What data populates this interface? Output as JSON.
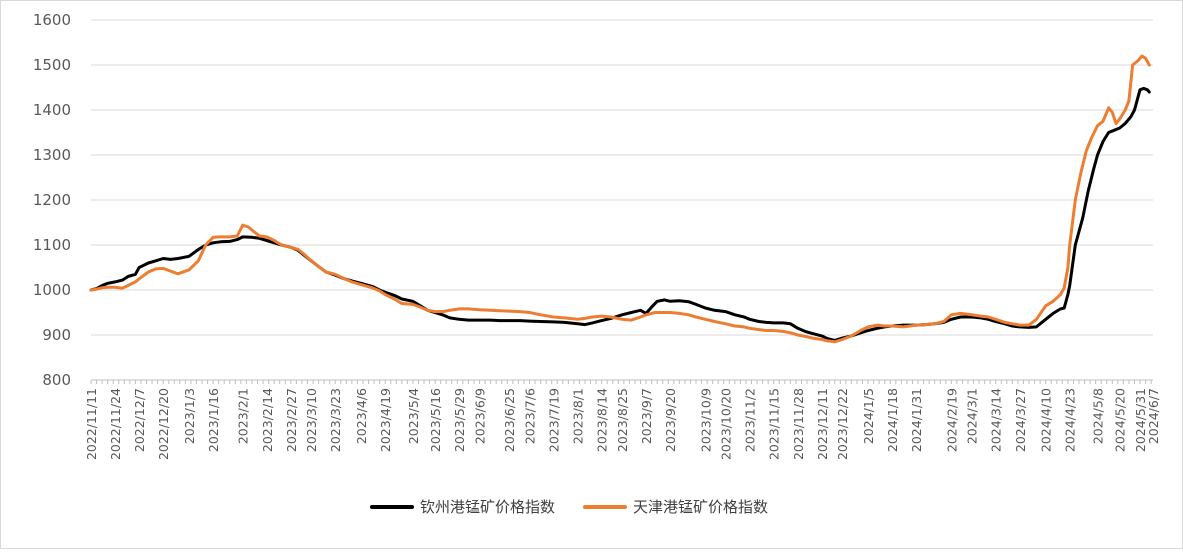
{
  "chart_data": {
    "type": "line",
    "title": "",
    "xlabel": "",
    "ylabel": "",
    "ylim": [
      800,
      1600
    ],
    "yticks": [
      800,
      900,
      1000,
      1100,
      1200,
      1300,
      1400,
      1500,
      1600
    ],
    "grid": "horizontal",
    "legend_position": "bottom",
    "x_start": "2022/11/11",
    "x_end": "2024/6/7",
    "xtick_labels": [
      "2022/11/11",
      "2022/11/24",
      "2022/12/7",
      "2022/12/20",
      "2023/1/3",
      "2023/1/16",
      "2023/2/1",
      "2023/2/14",
      "2023/2/27",
      "2023/3/10",
      "2023/3/23",
      "2023/4/6",
      "2023/4/19",
      "2023/5/4",
      "2023/5/16",
      "2023/5/29",
      "2023/6/9",
      "2023/6/25",
      "2023/7/6",
      "2023/7/19",
      "2023/8/1",
      "2023/8/14",
      "2023/8/25",
      "2023/9/7",
      "2023/9/20",
      "2023/10/9",
      "2023/10/20",
      "2023/11/2",
      "2023/11/15",
      "2023/11/28",
      "2023/12/11",
      "2023/12/22",
      "2024/1/5",
      "2024/1/18",
      "2024/1/31",
      "2024/2/19",
      "2024/3/1",
      "2024/3/14",
      "2024/3/27",
      "2024/4/10",
      "2024/4/23",
      "2024/5/8",
      "2024/5/20",
      "2024/5/31",
      "2024/6/7"
    ],
    "series": [
      {
        "name": "钦州港锰矿价格指数",
        "color": "#000000",
        "points": [
          [
            "2022/11/11",
            1000
          ],
          [
            "2022/11/14",
            1003
          ],
          [
            "2022/11/17",
            1010
          ],
          [
            "2022/11/20",
            1015
          ],
          [
            "2022/11/24",
            1018
          ],
          [
            "2022/11/28",
            1022
          ],
          [
            "2022/12/1",
            1030
          ],
          [
            "2022/12/5",
            1035
          ],
          [
            "2022/12/7",
            1050
          ],
          [
            "2022/12/12",
            1060
          ],
          [
            "2022/12/16",
            1065
          ],
          [
            "2022/12/20",
            1070
          ],
          [
            "2022/12/24",
            1068
          ],
          [
            "2022/12/28",
            1070
          ],
          [
            "2023/1/3",
            1075
          ],
          [
            "2023/1/8",
            1090
          ],
          [
            "2023/1/12",
            1100
          ],
          [
            "2023/1/16",
            1105
          ],
          [
            "2023/1/20",
            1107
          ],
          [
            "2023/1/25",
            1108
          ],
          [
            "2023/1/29",
            1112
          ],
          [
            "2023/2/1",
            1118
          ],
          [
            "2023/2/6",
            1117
          ],
          [
            "2023/2/10",
            1115
          ],
          [
            "2023/2/14",
            1110
          ],
          [
            "2023/2/18",
            1105
          ],
          [
            "2023/2/22",
            1100
          ],
          [
            "2023/2/27",
            1095
          ],
          [
            "2023/3/3",
            1088
          ],
          [
            "2023/3/6",
            1078
          ],
          [
            "2023/3/10",
            1065
          ],
          [
            "2023/3/14",
            1052
          ],
          [
            "2023/3/18",
            1040
          ],
          [
            "2023/3/23",
            1033
          ],
          [
            "2023/3/28",
            1025
          ],
          [
            "2023/4/1",
            1020
          ],
          [
            "2023/4/6",
            1015
          ],
          [
            "2023/4/12",
            1008
          ],
          [
            "2023/4/16",
            1000
          ],
          [
            "2023/4/19",
            995
          ],
          [
            "2023/4/24",
            988
          ],
          [
            "2023/4/28",
            980
          ],
          [
            "2023/5/4",
            975
          ],
          [
            "2023/5/8",
            965
          ],
          [
            "2023/5/12",
            955
          ],
          [
            "2023/5/16",
            950
          ],
          [
            "2023/5/20",
            945
          ],
          [
            "2023/5/24",
            938
          ],
          [
            "2023/5/29",
            935
          ],
          [
            "2023/6/3",
            933
          ],
          [
            "2023/6/9",
            933
          ],
          [
            "2023/6/15",
            933
          ],
          [
            "2023/6/20",
            932
          ],
          [
            "2023/6/25",
            932
          ],
          [
            "2023/7/1",
            932
          ],
          [
            "2023/7/6",
            931
          ],
          [
            "2023/7/12",
            930
          ],
          [
            "2023/7/19",
            929
          ],
          [
            "2023/7/25",
            928
          ],
          [
            "2023/8/1",
            925
          ],
          [
            "2023/8/5",
            923
          ],
          [
            "2023/8/9",
            927
          ],
          [
            "2023/8/14",
            932
          ],
          [
            "2023/8/19",
            937
          ],
          [
            "2023/8/25",
            945
          ],
          [
            "2023/8/30",
            950
          ],
          [
            "2023/9/4",
            955
          ],
          [
            "2023/9/7",
            948
          ],
          [
            "2023/9/10",
            962
          ],
          [
            "2023/9/13",
            975
          ],
          [
            "2023/9/17",
            978
          ],
          [
            "2023/9/20",
            975
          ],
          [
            "2023/9/25",
            976
          ],
          [
            "2023/9/30",
            974
          ],
          [
            "2023/10/4",
            968
          ],
          [
            "2023/10/9",
            960
          ],
          [
            "2023/10/14",
            955
          ],
          [
            "2023/10/20",
            952
          ],
          [
            "2023/10/25",
            945
          ],
          [
            "2023/10/30",
            940
          ],
          [
            "2023/11/2",
            935
          ],
          [
            "2023/11/7",
            930
          ],
          [
            "2023/11/11",
            928
          ],
          [
            "2023/11/15",
            927
          ],
          [
            "2023/11/20",
            927
          ],
          [
            "2023/11/24",
            925
          ],
          [
            "2023/11/28",
            915
          ],
          [
            "2023/12/2",
            908
          ],
          [
            "2023/12/6",
            903
          ],
          [
            "2023/12/11",
            898
          ],
          [
            "2023/12/14",
            892
          ],
          [
            "2023/12/18",
            888
          ],
          [
            "2023/12/22",
            893
          ],
          [
            "2023/12/27",
            898
          ],
          [
            "2024/1/1",
            905
          ],
          [
            "2024/1/5",
            910
          ],
          [
            "2024/1/10",
            915
          ],
          [
            "2024/1/14",
            918
          ],
          [
            "2024/1/18",
            920
          ],
          [
            "2024/1/24",
            922
          ],
          [
            "2024/1/31",
            922
          ],
          [
            "2024/2/5",
            923
          ],
          [
            "2024/2/10",
            925
          ],
          [
            "2024/2/15",
            928
          ],
          [
            "2024/2/19",
            935
          ],
          [
            "2024/2/24",
            940
          ],
          [
            "2024/3/1",
            940
          ],
          [
            "2024/3/6",
            938
          ],
          [
            "2024/3/10",
            935
          ],
          [
            "2024/3/14",
            930
          ],
          [
            "2024/3/19",
            925
          ],
          [
            "2024/3/23",
            920
          ],
          [
            "2024/3/27",
            918
          ],
          [
            "2024/4/1",
            917
          ],
          [
            "2024/4/5",
            918
          ],
          [
            "2024/4/10",
            935
          ],
          [
            "2024/4/14",
            948
          ],
          [
            "2024/4/18",
            958
          ],
          [
            "2024/4/20",
            960
          ],
          [
            "2024/4/22",
            990
          ],
          [
            "2024/4/23",
            1010
          ],
          [
            "2024/4/26",
            1100
          ],
          [
            "2024/4/30",
            1160
          ],
          [
            "2024/5/3",
            1220
          ],
          [
            "2024/5/6",
            1270
          ],
          [
            "2024/5/8",
            1300
          ],
          [
            "2024/5/11",
            1330
          ],
          [
            "2024/5/14",
            1350
          ],
          [
            "2024/5/17",
            1355
          ],
          [
            "2024/5/20",
            1360
          ],
          [
            "2024/5/23",
            1370
          ],
          [
            "2024/5/26",
            1385
          ],
          [
            "2024/5/28",
            1400
          ],
          [
            "2024/5/31",
            1445
          ],
          [
            "2024/6/2",
            1448
          ],
          [
            "2024/6/4",
            1445
          ],
          [
            "2024/6/5",
            1440
          ]
        ]
      },
      {
        "name": "天津港锰矿价格指数",
        "color": "#ED7D31",
        "points": [
          [
            "2022/11/11",
            1000
          ],
          [
            "2022/11/14",
            1002
          ],
          [
            "2022/11/17",
            1005
          ],
          [
            "2022/11/20",
            1006
          ],
          [
            "2022/11/24",
            1006
          ],
          [
            "2022/11/28",
            1004
          ],
          [
            "2022/12/1",
            1010
          ],
          [
            "2022/12/5",
            1018
          ],
          [
            "2022/12/7",
            1025
          ],
          [
            "2022/12/12",
            1040
          ],
          [
            "2022/12/16",
            1047
          ],
          [
            "2022/12/20",
            1048
          ],
          [
            "2022/12/24",
            1042
          ],
          [
            "2022/12/28",
            1036
          ],
          [
            "2023/1/3",
            1045
          ],
          [
            "2023/1/8",
            1065
          ],
          [
            "2023/1/12",
            1100
          ],
          [
            "2023/1/16",
            1117
          ],
          [
            "2023/1/20",
            1118
          ],
          [
            "2023/1/25",
            1118
          ],
          [
            "2023/1/29",
            1120
          ],
          [
            "2023/2/1",
            1144
          ],
          [
            "2023/2/4",
            1140
          ],
          [
            "2023/2/7",
            1130
          ],
          [
            "2023/2/10",
            1120
          ],
          [
            "2023/2/14",
            1118
          ],
          [
            "2023/2/18",
            1110
          ],
          [
            "2023/2/22",
            1100
          ],
          [
            "2023/2/27",
            1095
          ],
          [
            "2023/3/3",
            1090
          ],
          [
            "2023/3/6",
            1080
          ],
          [
            "2023/3/10",
            1065
          ],
          [
            "2023/3/14",
            1052
          ],
          [
            "2023/3/18",
            1040
          ],
          [
            "2023/3/23",
            1035
          ],
          [
            "2023/3/28",
            1025
          ],
          [
            "2023/4/1",
            1018
          ],
          [
            "2023/4/6",
            1012
          ],
          [
            "2023/4/12",
            1005
          ],
          [
            "2023/4/16",
            998
          ],
          [
            "2023/4/19",
            990
          ],
          [
            "2023/4/24",
            980
          ],
          [
            "2023/4/28",
            970
          ],
          [
            "2023/5/4",
            968
          ],
          [
            "2023/5/8",
            962
          ],
          [
            "2023/5/12",
            955
          ],
          [
            "2023/5/16",
            952
          ],
          [
            "2023/5/20",
            952
          ],
          [
            "2023/5/24",
            955
          ],
          [
            "2023/5/29",
            958
          ],
          [
            "2023/6/3",
            958
          ],
          [
            "2023/6/9",
            956
          ],
          [
            "2023/6/15",
            955
          ],
          [
            "2023/6/20",
            954
          ],
          [
            "2023/6/25",
            953
          ],
          [
            "2023/7/1",
            952
          ],
          [
            "2023/7/6",
            950
          ],
          [
            "2023/7/12",
            945
          ],
          [
            "2023/7/19",
            940
          ],
          [
            "2023/7/25",
            938
          ],
          [
            "2023/8/1",
            935
          ],
          [
            "2023/8/5",
            937
          ],
          [
            "2023/8/9",
            940
          ],
          [
            "2023/8/14",
            942
          ],
          [
            "2023/8/19",
            940
          ],
          [
            "2023/8/25",
            935
          ],
          [
            "2023/8/30",
            933
          ],
          [
            "2023/9/4",
            940
          ],
          [
            "2023/9/7",
            945
          ],
          [
            "2023/9/12",
            950
          ],
          [
            "2023/9/17",
            950
          ],
          [
            "2023/9/20",
            950
          ],
          [
            "2023/9/25",
            948
          ],
          [
            "2023/9/30",
            945
          ],
          [
            "2023/10/4",
            940
          ],
          [
            "2023/10/9",
            935
          ],
          [
            "2023/10/14",
            930
          ],
          [
            "2023/10/20",
            925
          ],
          [
            "2023/10/25",
            920
          ],
          [
            "2023/10/30",
            918
          ],
          [
            "2023/11/2",
            915
          ],
          [
            "2023/11/7",
            912
          ],
          [
            "2023/11/11",
            910
          ],
          [
            "2023/11/15",
            910
          ],
          [
            "2023/11/20",
            908
          ],
          [
            "2023/11/24",
            905
          ],
          [
            "2023/11/28",
            900
          ],
          [
            "2023/12/2",
            897
          ],
          [
            "2023/12/6",
            893
          ],
          [
            "2023/12/11",
            890
          ],
          [
            "2023/12/14",
            887
          ],
          [
            "2023/12/18",
            885
          ],
          [
            "2023/12/22",
            890
          ],
          [
            "2023/12/27",
            898
          ],
          [
            "2024/1/1",
            910
          ],
          [
            "2024/1/5",
            918
          ],
          [
            "2024/1/10",
            922
          ],
          [
            "2024/1/14",
            920
          ],
          [
            "2024/1/18",
            920
          ],
          [
            "2024/1/24",
            918
          ],
          [
            "2024/1/31",
            922
          ],
          [
            "2024/2/5",
            923
          ],
          [
            "2024/2/10",
            925
          ],
          [
            "2024/2/15",
            930
          ],
          [
            "2024/2/19",
            945
          ],
          [
            "2024/2/24",
            948
          ],
          [
            "2024/3/1",
            945
          ],
          [
            "2024/3/6",
            942
          ],
          [
            "2024/3/10",
            940
          ],
          [
            "2024/3/14",
            935
          ],
          [
            "2024/3/19",
            928
          ],
          [
            "2024/3/23",
            925
          ],
          [
            "2024/3/27",
            922
          ],
          [
            "2024/4/1",
            922
          ],
          [
            "2024/4/5",
            935
          ],
          [
            "2024/4/10",
            965
          ],
          [
            "2024/4/14",
            975
          ],
          [
            "2024/4/18",
            990
          ],
          [
            "2024/4/20",
            1005
          ],
          [
            "2024/4/22",
            1050
          ],
          [
            "2024/4/23",
            1100
          ],
          [
            "2024/4/26",
            1200
          ],
          [
            "2024/4/29",
            1260
          ],
          [
            "2024/5/2",
            1310
          ],
          [
            "2024/5/5",
            1340
          ],
          [
            "2024/5/8",
            1365
          ],
          [
            "2024/5/11",
            1375
          ],
          [
            "2024/5/14",
            1405
          ],
          [
            "2024/5/16",
            1395
          ],
          [
            "2024/5/18",
            1370
          ],
          [
            "2024/5/20",
            1380
          ],
          [
            "2024/5/23",
            1400
          ],
          [
            "2024/5/25",
            1420
          ],
          [
            "2024/5/27",
            1500
          ],
          [
            "2024/5/30",
            1510
          ],
          [
            "2024/6/1",
            1520
          ],
          [
            "2024/6/3",
            1515
          ],
          [
            "2024/6/5",
            1500
          ]
        ]
      }
    ]
  }
}
